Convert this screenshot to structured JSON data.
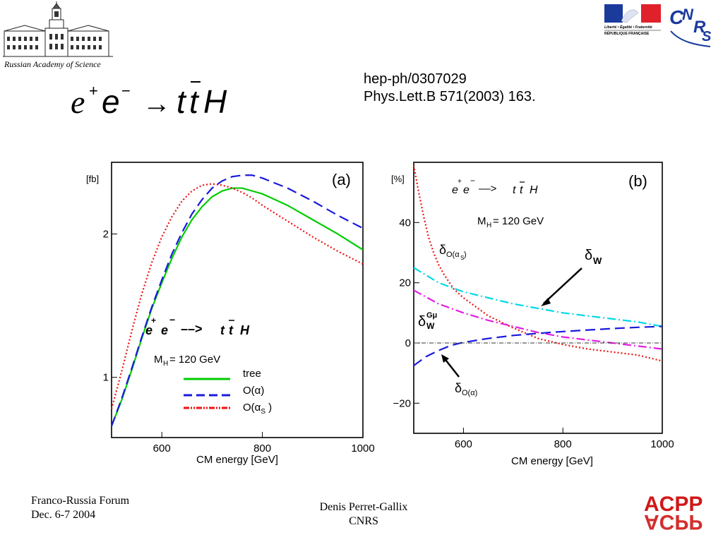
{
  "header": {
    "academy_caption": "Russian Academy of Science",
    "reference_lines": [
      "hep-ph/0307029",
      "Phys.Lett.B 571(2003) 163."
    ],
    "formula": "e⁺e⁻ → tt̄H",
    "french_logo_text": [
      "Liberté • Égalité • Fraternité",
      "RÉPUBLIQUE FRANÇAISE"
    ],
    "cnrs_logo_text": "CNRS"
  },
  "footer": {
    "left_lines": [
      "Franco-Russia Forum",
      "Dec. 6-7 2004"
    ],
    "center_lines": [
      "Denis Perret-Gallix",
      "CNRS"
    ],
    "acpp_logo_text": "ACPP"
  },
  "chart_data": [
    {
      "type": "line",
      "panel_label": "(a)",
      "ylabel": "[fb]",
      "xlabel": "CM energy [GeV]",
      "xlim": [
        500,
        1000
      ],
      "ylim": [
        0.58,
        2.5
      ],
      "x_ticks": [
        600,
        800,
        1000
      ],
      "y_ticks": [
        1,
        2
      ],
      "process_label": "e⁺e⁻ ––> t t̄ H",
      "mass_label": "M_H = 120 GeV",
      "series": [
        {
          "name": "tree",
          "color": "#00cc00",
          "dash": "solid",
          "x": [
            500,
            520,
            540,
            560,
            580,
            600,
            620,
            640,
            660,
            680,
            700,
            720,
            740,
            760,
            780,
            800,
            850,
            900,
            950,
            1000
          ],
          "y": [
            0.66,
            0.84,
            1.05,
            1.27,
            1.48,
            1.66,
            1.83,
            1.98,
            2.1,
            2.19,
            2.26,
            2.3,
            2.32,
            2.32,
            2.3,
            2.28,
            2.2,
            2.1,
            2.0,
            1.89
          ]
        },
        {
          "name": "O(α)",
          "color": "#1a1adc",
          "dash": "long",
          "x": [
            500,
            520,
            540,
            560,
            580,
            600,
            620,
            640,
            660,
            680,
            700,
            720,
            740,
            760,
            780,
            800,
            850,
            900,
            950,
            1000
          ],
          "y": [
            0.66,
            0.85,
            1.06,
            1.28,
            1.49,
            1.68,
            1.86,
            2.01,
            2.14,
            2.24,
            2.32,
            2.37,
            2.4,
            2.41,
            2.41,
            2.39,
            2.32,
            2.23,
            2.13,
            2.04
          ]
        },
        {
          "name": "O(αS )",
          "color": "#ee1111",
          "dash": "dot",
          "x": [
            500,
            520,
            540,
            560,
            580,
            600,
            620,
            640,
            660,
            680,
            700,
            720,
            740,
            760,
            780,
            800,
            850,
            900,
            950,
            1000
          ],
          "y": [
            0.78,
            1.04,
            1.32,
            1.58,
            1.8,
            1.98,
            2.12,
            2.23,
            2.3,
            2.34,
            2.35,
            2.34,
            2.32,
            2.29,
            2.25,
            2.2,
            2.09,
            1.98,
            1.88,
            1.79
          ]
        }
      ]
    },
    {
      "type": "line",
      "panel_label": "(b)",
      "ylabel": "[%]",
      "xlabel": "CM energy [GeV]",
      "xlim": [
        500,
        1000
      ],
      "ylim": [
        -30,
        60
      ],
      "x_ticks": [
        600,
        800,
        1000
      ],
      "y_ticks": [
        40,
        20,
        0,
        -20
      ],
      "process_label": "e⁺e⁻ ––> t t̄ H",
      "mass_label": "M_H = 120 GeV",
      "series": [
        {
          "name": "δO(αS)",
          "color": "#ee1111",
          "dash": "dot",
          "x": [
            500,
            510,
            520,
            530,
            540,
            550,
            560,
            580,
            600,
            625,
            650,
            700,
            750,
            800,
            850,
            900,
            950,
            1000
          ],
          "y": [
            59,
            50,
            42,
            35,
            30,
            26,
            23,
            18,
            15,
            12,
            9,
            5,
            1.5,
            -0.5,
            -2,
            -3,
            -4,
            -6
          ]
        },
        {
          "name": "δW",
          "color": "#00d8e8",
          "dash": "dashdot",
          "x": [
            500,
            550,
            600,
            650,
            700,
            750,
            800,
            850,
            900,
            950,
            1000
          ],
          "y": [
            25,
            20,
            17,
            15,
            13,
            11.5,
            10,
            9,
            8,
            7,
            5.5
          ]
        },
        {
          "name": "δW Gμ",
          "color": "#e01ee0",
          "dash": "dashdot",
          "x": [
            500,
            550,
            600,
            650,
            700,
            750,
            800,
            850,
            900,
            950,
            1000
          ],
          "y": [
            17.5,
            13,
            10,
            7.5,
            5.5,
            3.5,
            2,
            1,
            0,
            -1,
            -2
          ]
        },
        {
          "name": "δO(α)",
          "color": "#1a1adc",
          "dash": "long",
          "x": [
            500,
            525,
            550,
            575,
            600,
            650,
            700,
            750,
            800,
            850,
            900,
            950,
            1000
          ],
          "y": [
            -7.5,
            -4.5,
            -2.5,
            -0.8,
            0.2,
            1.5,
            2.5,
            3.2,
            3.8,
            4.3,
            4.8,
            5.2,
            5.5
          ]
        },
        {
          "name": "zero",
          "color": "#333333",
          "dash": "dashdotthin",
          "x": [
            500,
            1000
          ],
          "y": [
            0,
            0
          ]
        }
      ]
    }
  ]
}
